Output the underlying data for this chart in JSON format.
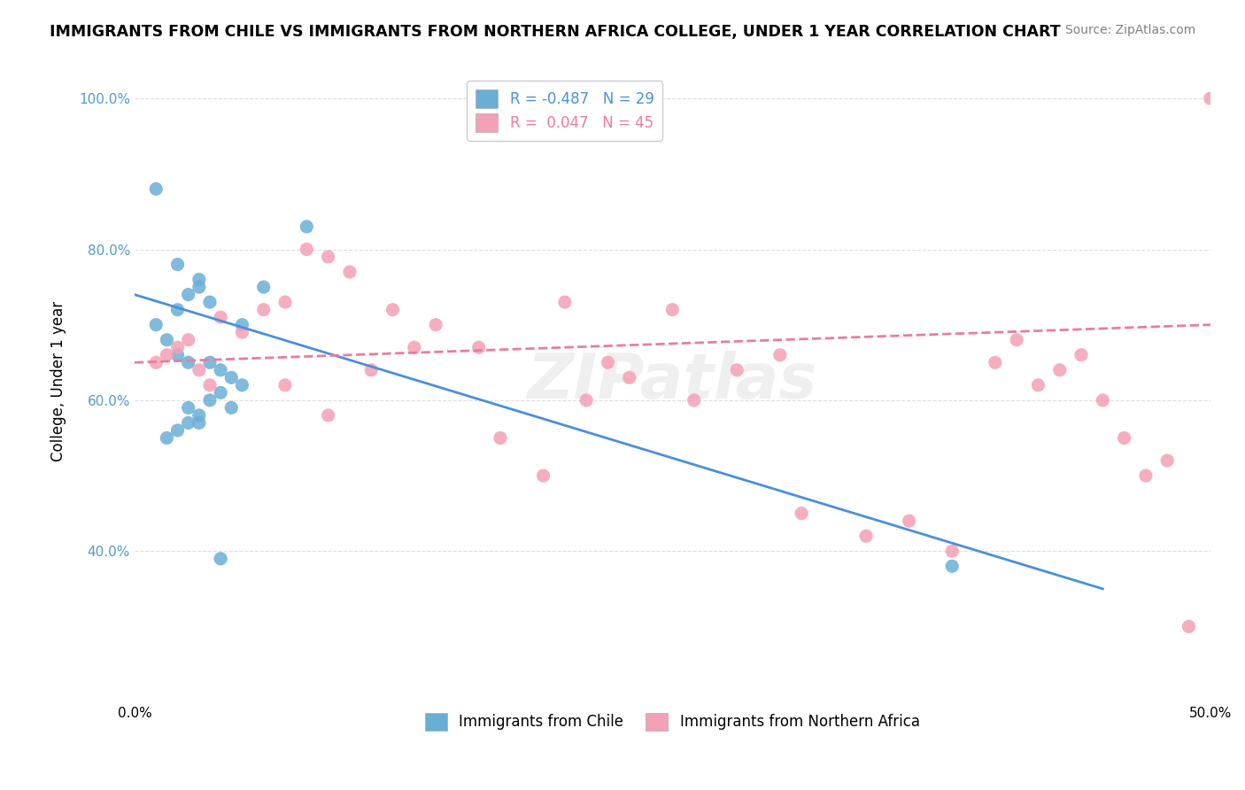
{
  "title": "IMMIGRANTS FROM CHILE VS IMMIGRANTS FROM NORTHERN AFRICA COLLEGE, UNDER 1 YEAR CORRELATION CHART",
  "source": "Source: ZipAtlas.com",
  "ylabel": "College, Under 1 year",
  "xmin": 0.0,
  "xmax": 0.5,
  "ymin": 0.2,
  "ymax": 1.05,
  "yticks": [
    0.4,
    0.6,
    0.8,
    1.0
  ],
  "ytick_labels": [
    "40.0%",
    "60.0%",
    "80.0%",
    "100.0%"
  ],
  "xticks": [
    0.0,
    0.1,
    0.2,
    0.3,
    0.4,
    0.5
  ],
  "xtick_labels": [
    "0.0%",
    "",
    "",
    "",
    "",
    "50.0%"
  ],
  "legend_r1": "-0.487",
  "legend_n1": "29",
  "legend_r2": "0.047",
  "legend_n2": "45",
  "watermark": "ZIPatlas",
  "blue_color": "#6aaed6",
  "pink_color": "#f4a0b5",
  "blue_line_color": "#4a90d9",
  "pink_line_color": "#e87da0",
  "chile_points_x": [
    0.02,
    0.03,
    0.02,
    0.025,
    0.03,
    0.035,
    0.01,
    0.015,
    0.02,
    0.025,
    0.04,
    0.045,
    0.05,
    0.035,
    0.03,
    0.025,
    0.02,
    0.015,
    0.025,
    0.03,
    0.04,
    0.045,
    0.035,
    0.05,
    0.06,
    0.08,
    0.04,
    0.38,
    0.01
  ],
  "chile_points_y": [
    0.72,
    0.75,
    0.78,
    0.74,
    0.76,
    0.73,
    0.7,
    0.68,
    0.66,
    0.65,
    0.64,
    0.63,
    0.62,
    0.6,
    0.58,
    0.57,
    0.56,
    0.55,
    0.59,
    0.57,
    0.61,
    0.59,
    0.65,
    0.7,
    0.75,
    0.83,
    0.39,
    0.38,
    0.88
  ],
  "nafr_points_x": [
    0.01,
    0.02,
    0.015,
    0.025,
    0.03,
    0.035,
    0.04,
    0.05,
    0.06,
    0.07,
    0.08,
    0.09,
    0.1,
    0.12,
    0.14,
    0.16,
    0.2,
    0.22,
    0.25,
    0.28,
    0.3,
    0.07,
    0.09,
    0.11,
    0.13,
    0.17,
    0.19,
    0.21,
    0.23,
    0.26,
    0.31,
    0.34,
    0.36,
    0.38,
    0.4,
    0.41,
    0.42,
    0.43,
    0.44,
    0.45,
    0.46,
    0.47,
    0.48,
    0.49,
    0.5
  ],
  "nafr_points_y": [
    0.65,
    0.67,
    0.66,
    0.68,
    0.64,
    0.62,
    0.71,
    0.69,
    0.72,
    0.73,
    0.8,
    0.79,
    0.77,
    0.72,
    0.7,
    0.67,
    0.73,
    0.65,
    0.72,
    0.64,
    0.66,
    0.62,
    0.58,
    0.64,
    0.67,
    0.55,
    0.5,
    0.6,
    0.63,
    0.6,
    0.45,
    0.42,
    0.44,
    0.4,
    0.65,
    0.68,
    0.62,
    0.64,
    0.66,
    0.6,
    0.55,
    0.5,
    0.52,
    0.3,
    1.0
  ],
  "blue_line_x": [
    0.0,
    0.45
  ],
  "blue_line_y": [
    0.74,
    0.35
  ],
  "pink_line_x": [
    0.0,
    0.5
  ],
  "pink_line_y": [
    0.65,
    0.7
  ],
  "bg_color": "#ffffff",
  "grid_color": "#dddddd"
}
